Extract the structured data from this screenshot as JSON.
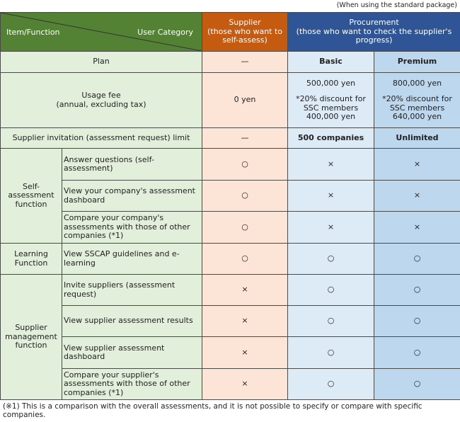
{
  "note_top": "(When using the standard package)",
  "header": {
    "item_function": "Item/Function",
    "user_category": "User Category",
    "supplier": "Supplier\n(those who want to self-assess)",
    "procurement": "Procurement\n(those who want to check the supplier's progress)"
  },
  "colors": {
    "green": "#548235",
    "orange": "#c55a11",
    "blue": "#2f5597"
  },
  "plan": {
    "label": "Plan",
    "supplier": "—",
    "basic": "Basic",
    "premium": "Premium"
  },
  "fee": {
    "label": "Usage fee\n(annual, excluding tax)",
    "supplier": "0 yen",
    "basic": "500,000 yen",
    "basic_discount": "*20% discount for SSC members\n400,000 yen",
    "premium": "800,000 yen",
    "premium_discount": "*20% discount for SSC members\n640,000 yen"
  },
  "limit": {
    "label": "Supplier invitation (assessment request) limit",
    "supplier": "—",
    "basic": "500 companies",
    "premium": "Unlimited"
  },
  "groups": {
    "self": "Self-assessment function",
    "learning": "Learning Function",
    "mgmt": "Supplier management function"
  },
  "rows": [
    {
      "item": "Answer questions (self-assessment)",
      "supplier": "○",
      "basic": "×",
      "premium": "×"
    },
    {
      "item": "View your company's assessment dashboard",
      "supplier": "○",
      "basic": "×",
      "premium": "×"
    },
    {
      "item": "Compare your company's assessments with those of other companies (*1)",
      "supplier": "○",
      "basic": "×",
      "premium": "×"
    },
    {
      "item": "View SSCAP guidelines and e-learning",
      "supplier": "○",
      "basic": "○",
      "premium": "○"
    },
    {
      "item": "Invite suppliers (assessment request)",
      "supplier": "×",
      "basic": "○",
      "premium": "○"
    },
    {
      "item": "View supplier assessment results",
      "supplier": "×",
      "basic": "○",
      "premium": "○"
    },
    {
      "item": "View supplier assessment dashboard",
      "supplier": "×",
      "basic": "○",
      "premium": "○"
    },
    {
      "item": "Compare your supplier's assessments with those of other companies (*1)",
      "supplier": "×",
      "basic": "○",
      "premium": "○"
    }
  ],
  "footnote": "(※1) This is a comparison with the overall assessments, and it is not possible to specify or compare with specific companies."
}
